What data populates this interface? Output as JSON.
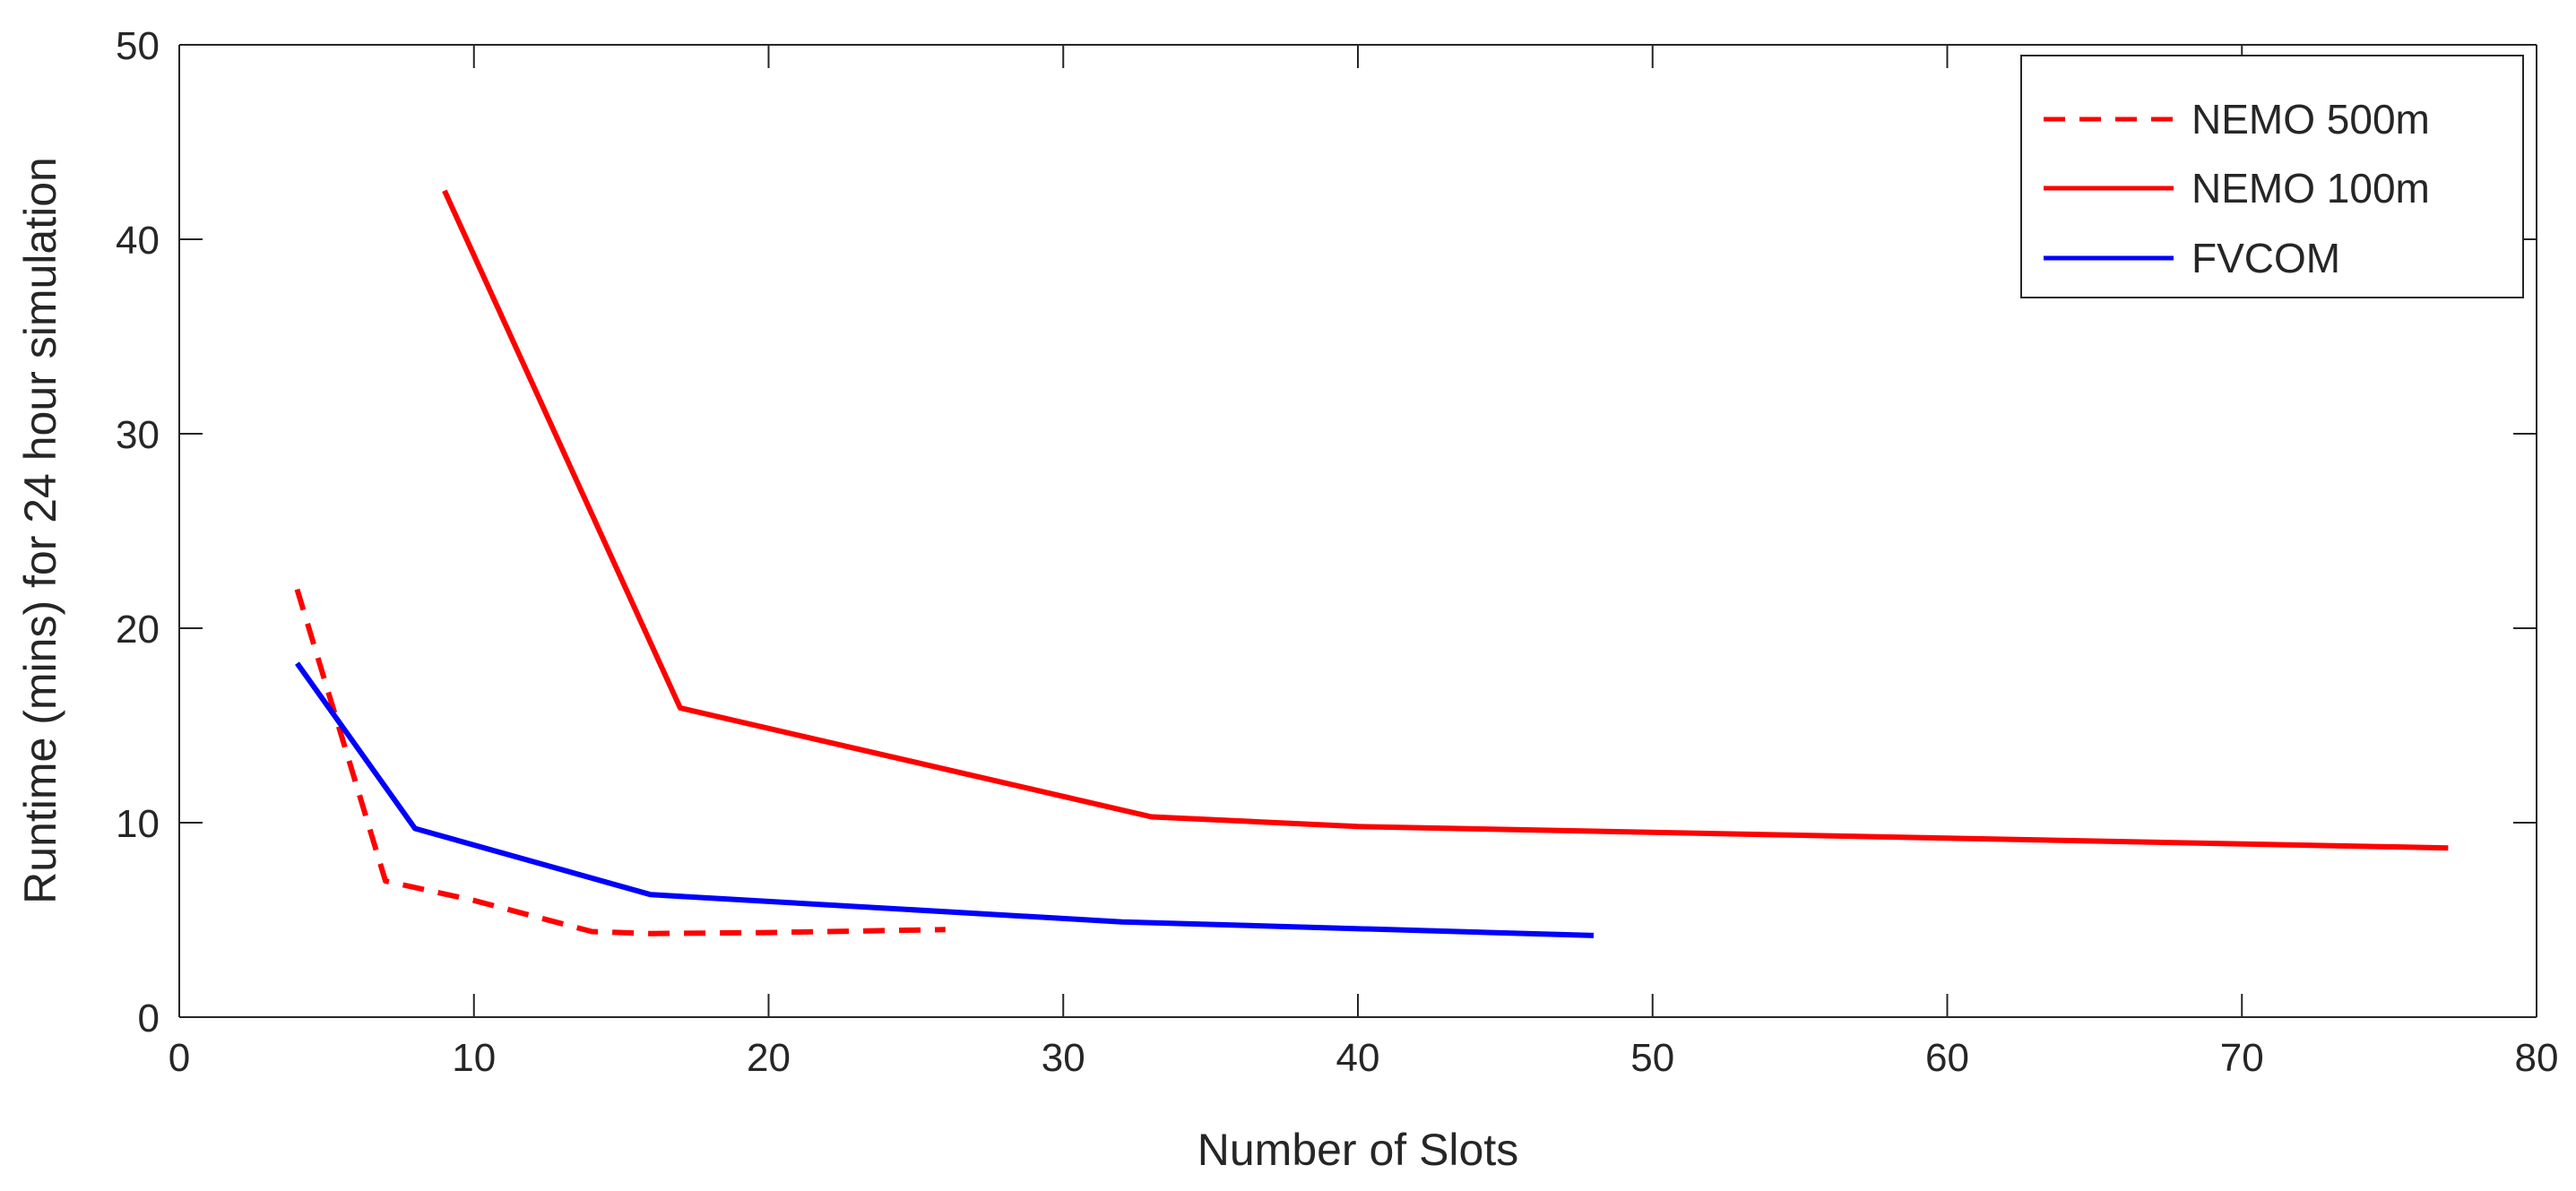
{
  "chart_data": {
    "type": "line",
    "title": "",
    "xlabel": "Number of Slots",
    "ylabel": "Runtime (mins) for 24 hour simulation",
    "xlim": [
      0,
      80
    ],
    "ylim": [
      0,
      50
    ],
    "xticks": [
      0,
      10,
      20,
      30,
      40,
      50,
      60,
      70,
      80
    ],
    "yticks": [
      0,
      10,
      20,
      30,
      40,
      50
    ],
    "grid": false,
    "legend_position": "top-right",
    "series": [
      {
        "name": "NEMO 500m",
        "color": "#ff0000",
        "style": "dashed",
        "x": [
          4,
          7,
          10,
          14,
          16,
          20,
          26
        ],
        "y": [
          22.0,
          7.0,
          6.0,
          4.4,
          4.3,
          4.35,
          4.5
        ]
      },
      {
        "name": "NEMO 100m",
        "color": "#ff0000",
        "style": "solid",
        "x": [
          9,
          17,
          33,
          40,
          77
        ],
        "y": [
          42.5,
          15.9,
          10.3,
          9.8,
          8.7
        ]
      },
      {
        "name": "FVCOM",
        "color": "#0000ff",
        "style": "solid",
        "x": [
          4,
          8,
          16,
          32,
          48
        ],
        "y": [
          18.2,
          9.7,
          6.3,
          4.9,
          4.2
        ]
      }
    ]
  }
}
